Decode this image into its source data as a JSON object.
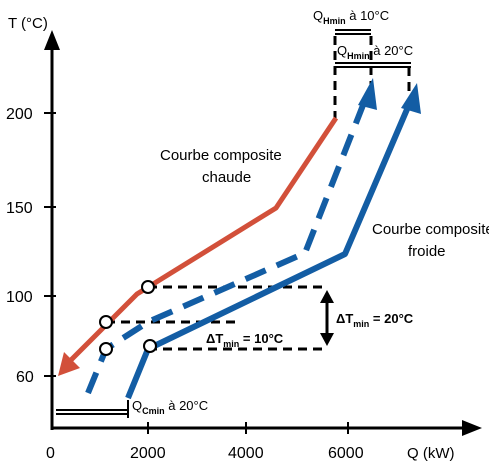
{
  "axes": {
    "y_label": "T (°C)",
    "x_label": "Q (kW)",
    "y_ticks": [
      "200",
      "150",
      "100",
      "60"
    ],
    "x_ticks": [
      "0",
      "2000",
      "4000",
      "6000"
    ]
  },
  "labels": {
    "hot_curve": [
      "Courbe composite",
      "chaude"
    ],
    "cold_curve": [
      "Courbe composite",
      "froide"
    ],
    "q_hmin_10": {
      "main": "Q",
      "sub": "Hmin",
      "suffix": " à 10°C"
    },
    "q_hmin_20": {
      "main": "Q",
      "sub": "Hmin",
      "suffix": " à 20°C"
    },
    "q_cmin_20": {
      "main": "Q",
      "sub": "Cmin",
      "suffix": " à 20°C"
    },
    "dt_min_10": {
      "main": "ΔT",
      "sub": "min",
      "suffix": " = 10°C"
    },
    "dt_min_20": {
      "main": "ΔT",
      "sub": "min",
      "suffix": " = 20°C"
    }
  },
  "colors": {
    "hot": "#d2503a",
    "cold": "#135da4",
    "axis": "#000000"
  }
}
